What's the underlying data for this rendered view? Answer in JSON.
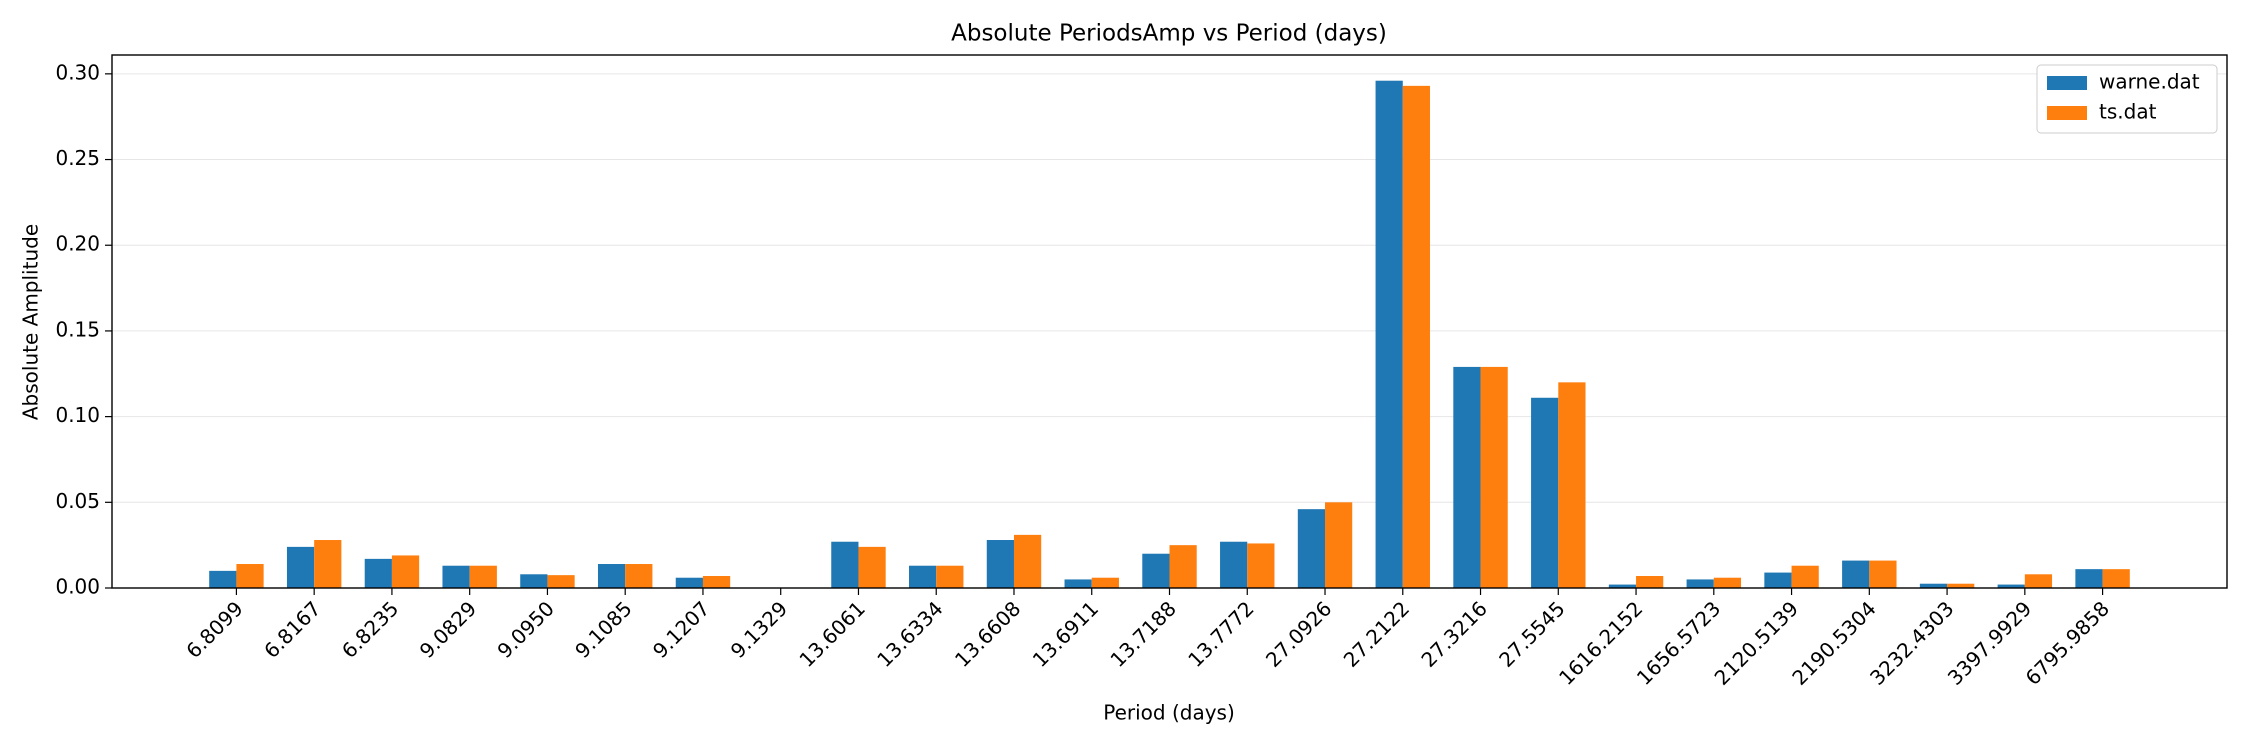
{
  "chart_data": {
    "type": "bar",
    "title": "Absolute PeriodsAmp vs Period (days)",
    "x_label": "Period (days)",
    "y_label": "Absolute Amplitude",
    "categories": [
      "6.8099",
      "6.8167",
      "6.8235",
      "9.0829",
      "9.0950",
      "9.1085",
      "9.1207",
      "9.1329",
      "13.6061",
      "13.6334",
      "13.6608",
      "13.6911",
      "13.7188",
      "13.7772",
      "27.0926",
      "27.2122",
      "27.3216",
      "27.5545",
      "1616.2152",
      "1656.5723",
      "2120.5139",
      "2190.5304",
      "3232.4303",
      "3397.9929",
      "6795.9858"
    ],
    "series": [
      {
        "name": "warne.dat",
        "color": "#1f77b4",
        "values": [
          0.01,
          0.024,
          0.017,
          0.013,
          0.008,
          0.014,
          0.006,
          0,
          0.027,
          0.013,
          0.028,
          0.005,
          0.02,
          0.027,
          0.046,
          0.296,
          0.129,
          0.111,
          0.002,
          0.005,
          0.009,
          0.016,
          0.0025,
          0.002,
          0.011
        ]
      },
      {
        "name": "ts.dat",
        "color": "#ff7f0e",
        "values": [
          0.014,
          0.028,
          0.019,
          0.013,
          0.0075,
          0.014,
          0.007,
          0,
          0.024,
          0.013,
          0.031,
          0.006,
          0.025,
          0.026,
          0.05,
          0.293,
          0.129,
          0.12,
          0.007,
          0.006,
          0.013,
          0.016,
          0.0025,
          0.008,
          0.011
        ]
      }
    ],
    "ylim": [
      0,
      0.311
    ],
    "yticks": [
      {
        "value": 0,
        "label": "0.00"
      },
      0.05,
      {
        "value": 0.1,
        "label": "0.10"
      },
      0.15,
      {
        "value": 0.2,
        "label": "0.20"
      },
      0.25,
      {
        "value": 0.3,
        "label": "0.30"
      }
    ],
    "grid": true,
    "legend": "upper right"
  }
}
